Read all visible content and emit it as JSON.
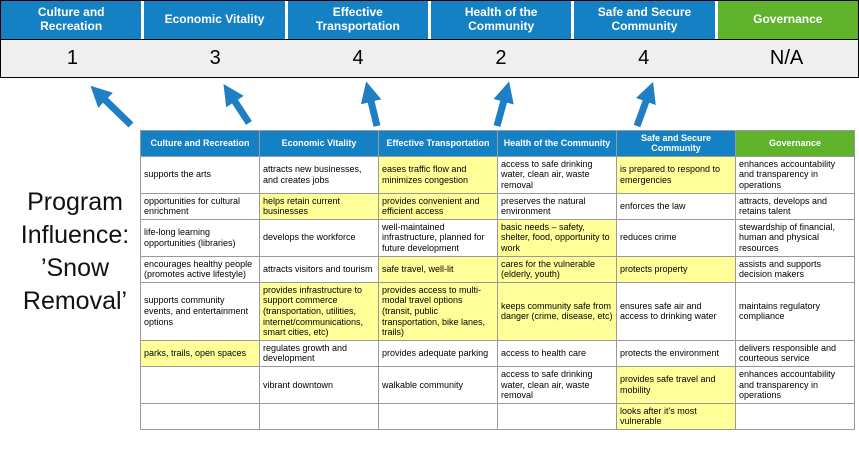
{
  "title": "Program Influence: ’Snow Removal’",
  "colors": {
    "header_blue": "#1581C5",
    "header_green": "#5EB32A",
    "highlight": "#FFFF99",
    "score_bg": "#EFEFEF",
    "arrow_blue": "#1F7EC4"
  },
  "scoreboard": {
    "columns": [
      {
        "label": "Culture and Recreation",
        "score": "1",
        "theme": "blue"
      },
      {
        "label": "Economic Vitality",
        "score": "3",
        "theme": "blue"
      },
      {
        "label": "Effective Transportation",
        "score": "4",
        "theme": "blue"
      },
      {
        "label": "Health of the Community",
        "score": "2",
        "theme": "blue"
      },
      {
        "label": "Safe and Secure Community",
        "score": "4",
        "theme": "blue"
      },
      {
        "label": "Governance",
        "score": "N/A",
        "theme": "green"
      }
    ]
  },
  "matrix": {
    "headers": [
      {
        "label": "Culture and Recreation",
        "theme": "blue"
      },
      {
        "label": "Economic Vitality",
        "theme": "blue"
      },
      {
        "label": "Effective Transportation",
        "theme": "blue"
      },
      {
        "label": "Health of the Community",
        "theme": "blue"
      },
      {
        "label": "Safe and Secure Community",
        "theme": "blue"
      },
      {
        "label": "Governance",
        "theme": "green"
      }
    ],
    "rows": [
      [
        {
          "t": "supports the arts",
          "h": false
        },
        {
          "t": "attracts new businesses, and creates jobs",
          "h": false
        },
        {
          "t": "eases traffic flow and minimizes congestion",
          "h": true
        },
        {
          "t": "access to safe drinking water, clean air, waste removal",
          "h": false
        },
        {
          "t": "is prepared to respond to emergencies",
          "h": true
        },
        {
          "t": "enhances accountability and transparency in operations",
          "h": false
        }
      ],
      [
        {
          "t": "opportunities for cultural enrichment",
          "h": false
        },
        {
          "t": "helps retain current businesses",
          "h": true
        },
        {
          "t": "provides convenient and efficient access",
          "h": true
        },
        {
          "t": "preserves the natural environment",
          "h": false
        },
        {
          "t": "enforces the law",
          "h": false
        },
        {
          "t": "attracts, develops and retains talent",
          "h": false
        }
      ],
      [
        {
          "t": "life-long learning opportunities (libraries)",
          "h": false
        },
        {
          "t": "develops the workforce",
          "h": false
        },
        {
          "t": "well-maintained infrastructure, planned for future development",
          "h": false
        },
        {
          "t": "basic needs – safety, shelter, food, opportunity to work",
          "h": true
        },
        {
          "t": "reduces crime",
          "h": false
        },
        {
          "t": "stewardship of financial, human and physical resources",
          "h": false
        }
      ],
      [
        {
          "t": "encourages healthy people (promotes active lifestyle)",
          "h": false
        },
        {
          "t": "attracts visitors and tourism",
          "h": false
        },
        {
          "t": "safe travel, well-lit",
          "h": true
        },
        {
          "t": "cares for the vulnerable (elderly, youth)",
          "h": true
        },
        {
          "t": "protects property",
          "h": true
        },
        {
          "t": "assists and supports decision makers",
          "h": false
        }
      ],
      [
        {
          "t": "supports community events, and entertainment options",
          "h": false
        },
        {
          "t": "provides infrastructure to support commerce (transportation, utilities, internet/communications, smart cities, etc)",
          "h": true
        },
        {
          "t": "provides access to multi-modal travel options (transit, public transportation, bike lanes, trails)",
          "h": true
        },
        {
          "t": "keeps community safe from danger (crime, disease, etc)",
          "h": true
        },
        {
          "t": "ensures safe air and access to drinking water",
          "h": false
        },
        {
          "t": "maintains regulatory compliance",
          "h": false
        }
      ],
      [
        {
          "t": "parks, trails, open spaces",
          "h": true
        },
        {
          "t": "regulates growth and development",
          "h": false
        },
        {
          "t": "provides adequate parking",
          "h": false
        },
        {
          "t": "access to health care",
          "h": false
        },
        {
          "t": "protects the environment",
          "h": false
        },
        {
          "t": "delivers responsible and courteous service",
          "h": false
        }
      ],
      [
        {
          "t": "",
          "h": false
        },
        {
          "t": "vibrant downtown",
          "h": false
        },
        {
          "t": "walkable community",
          "h": false
        },
        {
          "t": "access to safe drinking water, clean air, waste removal",
          "h": false
        },
        {
          "t": "provides safe travel and mobility",
          "h": true
        },
        {
          "t": "enhances accountability and transparency in operations",
          "h": false
        }
      ],
      [
        {
          "t": "",
          "h": false
        },
        {
          "t": "",
          "h": false
        },
        {
          "t": "",
          "h": false
        },
        {
          "t": "",
          "h": false
        },
        {
          "t": "looks after it's most vulnerable",
          "h": true
        },
        {
          "t": "",
          "h": false
        }
      ]
    ]
  }
}
